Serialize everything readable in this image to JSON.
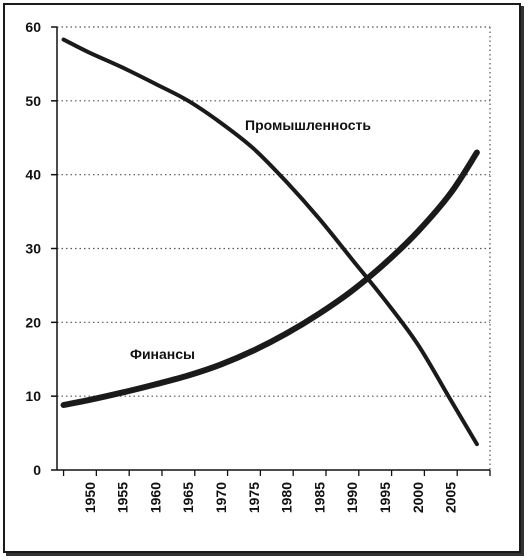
{
  "chart_data": {
    "type": "line",
    "title": "",
    "xlabel": "",
    "ylabel": "",
    "x_ticks": [
      "1950",
      "1955",
      "1960",
      "1965",
      "1970",
      "1975",
      "1980",
      "1985",
      "1990",
      "1995",
      "2000",
      "2005"
    ],
    "y_ticks": [
      "0",
      "10",
      "20",
      "30",
      "40",
      "50",
      "60"
    ],
    "xlim": [
      1945,
      2011
    ],
    "ylim": [
      0,
      60
    ],
    "grid": "dotted",
    "series": [
      {
        "name": "Промышленность",
        "color": "#1a1a1a",
        "x": [
          1946,
          1950,
          1955,
          1960,
          1965,
          1970,
          1975,
          1980,
          1985,
          1990,
          1995,
          2000,
          2005,
          2009
        ],
        "y": [
          58.3,
          56.5,
          54.5,
          52.3,
          50,
          47,
          43.5,
          39,
          34,
          28.5,
          23,
          17,
          9.5,
          3.5
        ]
      },
      {
        "name": "Финансы",
        "color": "#1a1a1a",
        "x": [
          1946,
          1950,
          1955,
          1960,
          1965,
          1970,
          1975,
          1980,
          1985,
          1990,
          1995,
          2000,
          2005,
          2009
        ],
        "y": [
          8.8,
          9.5,
          10.5,
          11.6,
          12.8,
          14.3,
          16.2,
          18.5,
          21.2,
          24.3,
          28,
          32.3,
          37.5,
          43
        ]
      }
    ]
  }
}
